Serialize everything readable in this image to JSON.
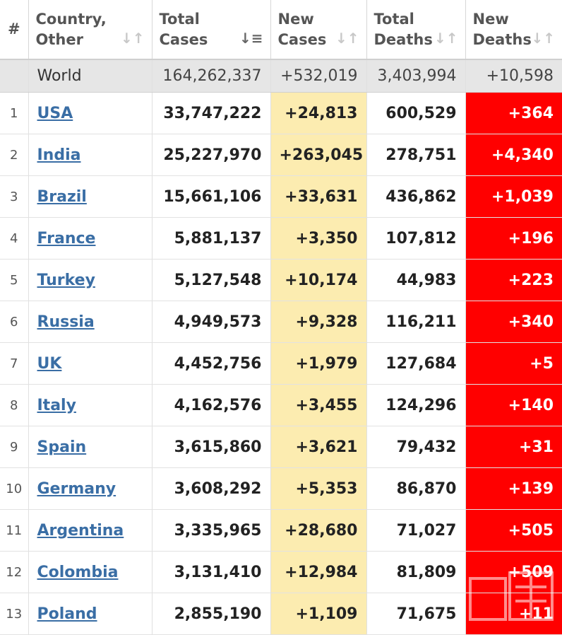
{
  "colors": {
    "new_cases_bg": "#fcecb0",
    "new_deaths_bg": "#ff0000",
    "world_row_bg": "#e6e6e6",
    "link": "#3a6ea5"
  },
  "headers": {
    "num": "#",
    "country": [
      "Country,",
      "Other"
    ],
    "total_cases": [
      "Total",
      "Cases"
    ],
    "new_cases": [
      "New",
      "Cases"
    ],
    "total_deaths": [
      "Total",
      "Deaths"
    ],
    "new_deaths": [
      "New",
      "Deaths"
    ],
    "sort_icon": "sort-icon",
    "sort_active_icon": "sort-descending-icon"
  },
  "world": {
    "name": "World",
    "total_cases": "164,262,337",
    "new_cases": "+532,019",
    "total_deaths": "3,403,994",
    "new_deaths": "+10,598"
  },
  "rows": [
    {
      "num": "1",
      "country": "USA",
      "total_cases": "33,747,222",
      "new_cases": "+24,813",
      "total_deaths": "600,529",
      "new_deaths": "+364"
    },
    {
      "num": "2",
      "country": "India",
      "total_cases": "25,227,970",
      "new_cases": "+263,045",
      "total_deaths": "278,751",
      "new_deaths": "+4,340"
    },
    {
      "num": "3",
      "country": "Brazil",
      "total_cases": "15,661,106",
      "new_cases": "+33,631",
      "total_deaths": "436,862",
      "new_deaths": "+1,039"
    },
    {
      "num": "4",
      "country": "France",
      "total_cases": "5,881,137",
      "new_cases": "+3,350",
      "total_deaths": "107,812",
      "new_deaths": "+196"
    },
    {
      "num": "5",
      "country": "Turkey",
      "total_cases": "5,127,548",
      "new_cases": "+10,174",
      "total_deaths": "44,983",
      "new_deaths": "+223"
    },
    {
      "num": "6",
      "country": "Russia",
      "total_cases": "4,949,573",
      "new_cases": "+9,328",
      "total_deaths": "116,211",
      "new_deaths": "+340"
    },
    {
      "num": "7",
      "country": "UK",
      "total_cases": "4,452,756",
      "new_cases": "+1,979",
      "total_deaths": "127,684",
      "new_deaths": "+5"
    },
    {
      "num": "8",
      "country": "Italy",
      "total_cases": "4,162,576",
      "new_cases": "+3,455",
      "total_deaths": "124,296",
      "new_deaths": "+140"
    },
    {
      "num": "9",
      "country": "Spain",
      "total_cases": "3,615,860",
      "new_cases": "+3,621",
      "total_deaths": "79,432",
      "new_deaths": "+31"
    },
    {
      "num": "10",
      "country": "Germany",
      "total_cases": "3,608,292",
      "new_cases": "+5,353",
      "total_deaths": "86,870",
      "new_deaths": "+139"
    },
    {
      "num": "11",
      "country": "Argentina",
      "total_cases": "3,335,965",
      "new_cases": "+28,680",
      "total_deaths": "71,027",
      "new_deaths": "+505"
    },
    {
      "num": "12",
      "country": "Colombia",
      "total_cases": "3,131,410",
      "new_cases": "+12,984",
      "total_deaths": "81,809",
      "new_deaths": "+509"
    },
    {
      "num": "13",
      "country": "Poland",
      "total_cases": "2,855,190",
      "new_cases": "+1,109",
      "total_deaths": "71,675",
      "new_deaths": "+11"
    }
  ],
  "watermark": {
    "text": "exmoo news"
  }
}
